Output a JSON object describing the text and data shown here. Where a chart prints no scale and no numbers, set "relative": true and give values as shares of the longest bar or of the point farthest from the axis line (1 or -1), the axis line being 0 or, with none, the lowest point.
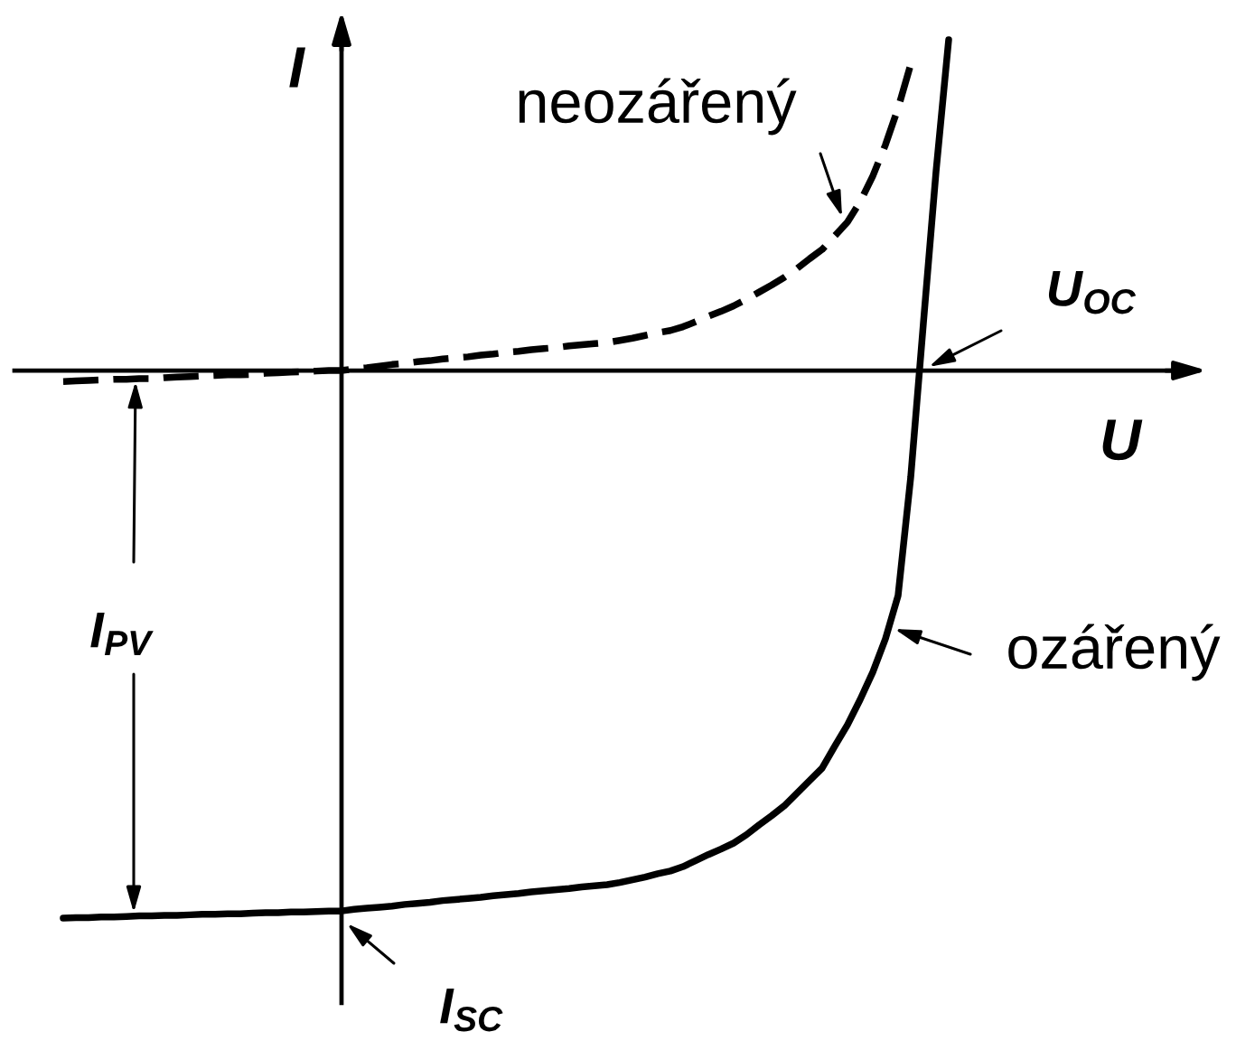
{
  "chart_data": {
    "type": "line",
    "relative": true,
    "xlabel": "U",
    "ylabel": "I",
    "categories": [
      null,
      null,
      null,
      null,
      null,
      null,
      null,
      null,
      null,
      null,
      null,
      null,
      null,
      null,
      null,
      null,
      null,
      null,
      null,
      null,
      null,
      null,
      null,
      null,
      null,
      null,
      null,
      null,
      null,
      null,
      null,
      null,
      null,
      null,
      null,
      null,
      null,
      null,
      null,
      null,
      null,
      null,
      null,
      null,
      null,
      null,
      null,
      null,
      null,
      null,
      null,
      null,
      null,
      null,
      null,
      null,
      null,
      null,
      null,
      null,
      null,
      null,
      null,
      null,
      null,
      null,
      null,
      null,
      null,
      null,
      null
    ],
    "series": [
      {
        "name": "neozářený",
        "color": "#000000",
        "line_style": "dashed",
        "values": [
          -0.02,
          -0.019,
          -0.018,
          -0.017,
          -0.016,
          -0.016,
          -0.015,
          -0.015,
          -0.013,
          -0.012,
          -0.011,
          -0.01,
          -0.009,
          -0.008,
          -0.008,
          -0.007,
          -0.005,
          -0.004,
          -0.003,
          -0.002,
          -0.001,
          0,
          0,
          0.003,
          0.005,
          0.008,
          0.011,
          0.013,
          0.016,
          0.018,
          0.021,
          0.023,
          0.025,
          0.028,
          0.03,
          0.033,
          0.035,
          0.038,
          0.04,
          0.042,
          0.045,
          0.047,
          0.049,
          0.051,
          0.055,
          0.059,
          0.064,
          0.069,
          0.073,
          0.08,
          0.089,
          0.099,
          0.108,
          0.118,
          0.13,
          0.143,
          0.156,
          0.17,
          0.186,
          0.204,
          0.221,
          0.246,
          0.271,
          0.308,
          0.355,
          0.412,
          0.479,
          0.559,
          null,
          null,
          null
        ]
      },
      {
        "name": "ozářený",
        "color": "#000000",
        "line_style": "solid",
        "values": [
          -1,
          -0.999,
          -0.999,
          -0.998,
          -0.998,
          -0.997,
          -0.996,
          -0.996,
          -0.995,
          -0.995,
          -0.994,
          -0.993,
          -0.993,
          -0.992,
          -0.992,
          -0.991,
          -0.99,
          -0.99,
          -0.989,
          -0.989,
          -0.988,
          -0.987,
          -0.987,
          -0.984,
          -0.982,
          -0.98,
          -0.978,
          -0.975,
          -0.973,
          -0.971,
          -0.968,
          -0.966,
          -0.964,
          -0.962,
          -0.959,
          -0.957,
          -0.955,
          -0.952,
          -0.95,
          -0.948,
          -0.946,
          -0.943,
          -0.941,
          -0.939,
          -0.935,
          -0.93,
          -0.925,
          -0.919,
          -0.914,
          -0.906,
          -0.895,
          -0.884,
          -0.874,
          -0.863,
          -0.848,
          -0.83,
          -0.813,
          -0.795,
          -0.772,
          -0.749,
          -0.726,
          -0.686,
          -0.647,
          -0.601,
          -0.551,
          -0.49,
          -0.411,
          -0.195,
          0.086,
          0.363,
          0.604
        ]
      }
    ],
    "annotations": [
      "U$_{OC}$",
      "I$_{PV}$",
      "I$_{SC}$"
    ]
  }
}
